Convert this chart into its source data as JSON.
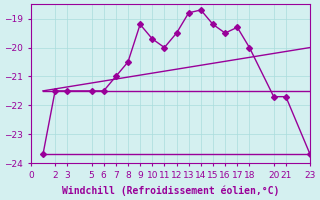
{
  "xlabel": "Windchill (Refroidissement éolien,°C)",
  "background_color": "#d4f0f0",
  "grid_color": "#aadddd",
  "line_color": "#990099",
  "xlim": [
    0,
    23
  ],
  "ylim": [
    -24,
    -18.5
  ],
  "yticks": [
    -24,
    -23,
    -22,
    -21,
    -20,
    -19
  ],
  "xticks": [
    0,
    2,
    3,
    5,
    6,
    7,
    8,
    9,
    10,
    11,
    12,
    13,
    14,
    15,
    16,
    17,
    18,
    20,
    21,
    23
  ],
  "line1_x": [
    1,
    2,
    3,
    5,
    6,
    7,
    8,
    9,
    10,
    11,
    12,
    13,
    14,
    15,
    16,
    17,
    18,
    20,
    21,
    23
  ],
  "line1_y": [
    -23.7,
    -21.5,
    -21.5,
    -21.5,
    -21.5,
    -21.0,
    -20.5,
    -19.2,
    -19.7,
    -20.0,
    -19.5,
    -18.8,
    -18.7,
    -19.2,
    -19.5,
    -19.3,
    -20.0,
    -21.7,
    -21.7,
    -23.7
  ],
  "line2_x": [
    1,
    23
  ],
  "line2_y": [
    -23.7,
    -23.7
  ],
  "line3_x": [
    1,
    23
  ],
  "line3_y": [
    -21.5,
    -21.5
  ],
  "line4_x": [
    1,
    23
  ],
  "line4_y": [
    -21.5,
    -20.0
  ],
  "marker": "D",
  "markersize": 3,
  "linewidth": 1.0,
  "tick_fontsize": 6.5
}
